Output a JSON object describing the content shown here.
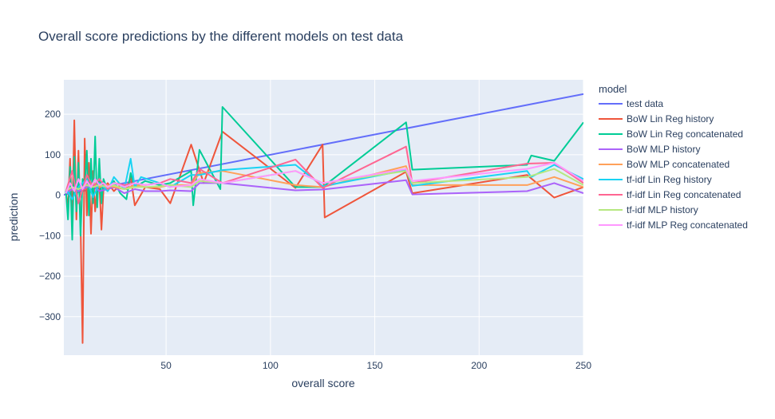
{
  "chart_data": {
    "type": "line",
    "title": "Overall score predictions by the different models on test data",
    "xlabel": "overall score",
    "ylabel": "prediction",
    "xlim": [
      1,
      250
    ],
    "ylim": [
      -395,
      285
    ],
    "xticks": [
      50,
      100,
      150,
      200,
      250
    ],
    "yticks": [
      -300,
      -200,
      -100,
      0,
      100,
      200
    ],
    "ytick_labels": [
      "−300",
      "−200",
      "−100",
      "0",
      "100",
      "200"
    ],
    "grid": true,
    "legend_title": "model",
    "legend_position": "right",
    "series": [
      {
        "name": "test data",
        "color": "#636efa",
        "x": [
          1,
          250
        ],
        "y": [
          1,
          250
        ]
      },
      {
        "name": "BoW Lin Reg history",
        "color": "#EF553B",
        "x": [
          2,
          3,
          4,
          5,
          6,
          7,
          8,
          9,
          10,
          11,
          12,
          13,
          14,
          15,
          16,
          17,
          18,
          19,
          20,
          22,
          25,
          28,
          31,
          33,
          35,
          40,
          47,
          52,
          62,
          68,
          77,
          112,
          125,
          126,
          165,
          168,
          223,
          236,
          250
        ],
        "y": [
          5,
          -30,
          90,
          -70,
          185,
          -60,
          110,
          -70,
          -365,
          140,
          -50,
          80,
          -95,
          60,
          -40,
          20,
          35,
          -85,
          15,
          30,
          10,
          25,
          15,
          45,
          -25,
          20,
          15,
          -20,
          125,
          30,
          157,
          18,
          125,
          -55,
          58,
          5,
          50,
          -6,
          20
        ]
      },
      {
        "name": "BoW Lin Reg concatenated",
        "color": "#00cc96",
        "x": [
          2,
          3,
          4,
          5,
          6,
          7,
          8,
          9,
          10,
          11,
          12,
          13,
          14,
          15,
          16,
          17,
          18,
          19,
          20,
          22,
          25,
          28,
          31,
          33,
          35,
          40,
          47,
          52,
          62,
          63,
          66,
          76,
          77,
          112,
          125,
          165,
          168,
          223,
          225,
          236,
          250
        ],
        "y": [
          10,
          -60,
          70,
          -110,
          95,
          -40,
          80,
          -100,
          40,
          20,
          110,
          -50,
          90,
          -20,
          145,
          -30,
          90,
          -20,
          40,
          10,
          35,
          5,
          -10,
          55,
          20,
          35,
          25,
          30,
          60,
          -25,
          112,
          15,
          218,
          20,
          20,
          180,
          63,
          75,
          98,
          85,
          180
        ]
      },
      {
        "name": "BoW MLP history",
        "color": "#ab63fa",
        "x": [
          2,
          5,
          8,
          12,
          15,
          18,
          22,
          25,
          30,
          35,
          40,
          47,
          52,
          62,
          66,
          77,
          112,
          125,
          165,
          168,
          223,
          236,
          250
        ],
        "y": [
          5,
          15,
          10,
          20,
          25,
          10,
          15,
          20,
          5,
          15,
          10,
          10,
          12,
          10,
          30,
          30,
          12,
          14,
          37,
          2,
          10,
          30,
          5
        ]
      },
      {
        "name": "BoW MLP concatenated",
        "color": "#FFA15A",
        "x": [
          2,
          5,
          8,
          12,
          15,
          18,
          22,
          25,
          30,
          35,
          40,
          47,
          52,
          62,
          66,
          77,
          112,
          125,
          165,
          168,
          223,
          236,
          250
        ],
        "y": [
          10,
          20,
          15,
          25,
          30,
          20,
          25,
          20,
          15,
          25,
          20,
          20,
          25,
          25,
          55,
          60,
          25,
          20,
          72,
          25,
          25,
          45,
          20
        ]
      },
      {
        "name": "tf-idf Lin Reg history",
        "color": "#19d3f3",
        "x": [
          2,
          5,
          8,
          12,
          15,
          18,
          22,
          25,
          30,
          33,
          35,
          38,
          47,
          52,
          62,
          66,
          77,
          112,
          125,
          165,
          168,
          223,
          225,
          236,
          250
        ],
        "y": [
          15,
          -10,
          20,
          40,
          -5,
          30,
          10,
          45,
          15,
          90,
          20,
          45,
          30,
          20,
          50,
          50,
          62,
          75,
          22,
          62,
          23,
          60,
          45,
          75,
          40
        ]
      },
      {
        "name": "tf-idf Lin Reg concatenated",
        "color": "#FF6692",
        "x": [
          2,
          5,
          8,
          12,
          15,
          18,
          22,
          25,
          30,
          35,
          40,
          47,
          52,
          62,
          66,
          77,
          112,
          125,
          165,
          168,
          223,
          236,
          250
        ],
        "y": [
          10,
          60,
          -20,
          50,
          20,
          40,
          15,
          30,
          25,
          30,
          25,
          30,
          40,
          30,
          65,
          30,
          88,
          18,
          120,
          30,
          78,
          80,
          30
        ]
      },
      {
        "name": "tf-idf MLP history",
        "color": "#B6E880",
        "x": [
          2,
          5,
          8,
          12,
          15,
          18,
          22,
          25,
          30,
          35,
          40,
          47,
          52,
          62,
          66,
          77,
          112,
          125,
          165,
          168,
          223,
          236,
          250
        ],
        "y": [
          12,
          20,
          15,
          25,
          20,
          25,
          20,
          25,
          15,
          20,
          20,
          22,
          25,
          20,
          35,
          30,
          60,
          30,
          60,
          30,
          45,
          65,
          25
        ]
      },
      {
        "name": "tf-idf MLP Reg concatenated",
        "color": "#FF97FF",
        "x": [
          2,
          4,
          6,
          8,
          10,
          12,
          14,
          16,
          18,
          20,
          22,
          25,
          28,
          30,
          35,
          40,
          47,
          52,
          62,
          66,
          77,
          112,
          125,
          165,
          168,
          223,
          236,
          250
        ],
        "y": [
          5,
          30,
          10,
          40,
          15,
          35,
          20,
          40,
          25,
          30,
          20,
          30,
          25,
          20,
          30,
          25,
          30,
          20,
          25,
          40,
          30,
          60,
          30,
          65,
          35,
          65,
          80,
          35
        ]
      }
    ]
  }
}
